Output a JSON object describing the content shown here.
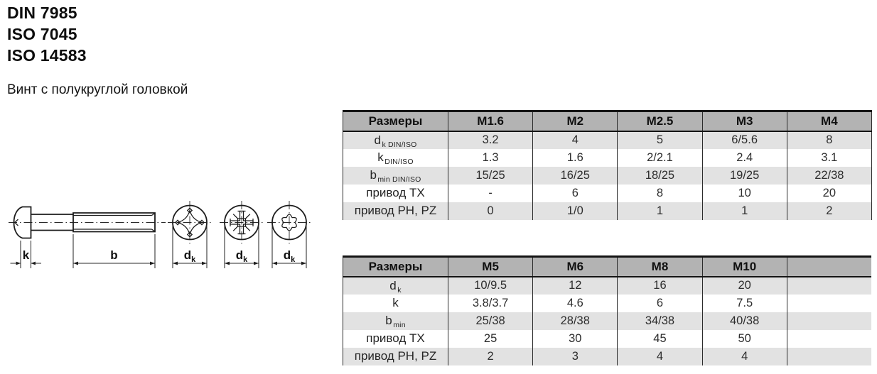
{
  "header": {
    "standards": [
      "DIN 7985",
      "ISO 7045",
      "ISO 14583"
    ],
    "subtitle": "Винт с полукруглой головкой"
  },
  "drawing": {
    "k_label": "k",
    "b_label": "b",
    "dk_label": "d",
    "dk_sub": "k",
    "views": [
      "side-view",
      "phillips-recess",
      "pozidriv-recess",
      "torx-recess"
    ]
  },
  "table1": {
    "header": [
      "Размеры",
      "M1.6",
      "M2",
      "M2.5",
      "M3",
      "M4"
    ],
    "rows": [
      {
        "label": {
          "base": "d",
          "sub": "k DIN/ISO"
        },
        "values": [
          "3.2",
          "4",
          "5",
          "6/5.6",
          "8"
        ]
      },
      {
        "label": {
          "base": "k",
          "sub": "DIN/ISO"
        },
        "values": [
          "1.3",
          "1.6",
          "2/2.1",
          "2.4",
          "3.1"
        ]
      },
      {
        "label": {
          "base": "b",
          "sub": "min DIN/ISO"
        },
        "values": [
          "15/25",
          "16/25",
          "18/25",
          "19/25",
          "22/38"
        ]
      },
      {
        "label": {
          "base": "привод TX",
          "sub": ""
        },
        "values": [
          "-",
          "6",
          "8",
          "10",
          "20"
        ]
      },
      {
        "label": {
          "base": "привод PH, PZ",
          "sub": ""
        },
        "values": [
          "0",
          "1/0",
          "1",
          "1",
          "2"
        ]
      }
    ]
  },
  "table2": {
    "header": [
      "Размеры",
      "M5",
      "M6",
      "M8",
      "M10",
      ""
    ],
    "rows": [
      {
        "label": {
          "base": "d",
          "sub": "k"
        },
        "values": [
          "10/9.5",
          "12",
          "16",
          "20",
          ""
        ]
      },
      {
        "label": {
          "base": "k",
          "sub": ""
        },
        "values": [
          "3.8/3.7",
          "4.6",
          "6",
          "7.5",
          ""
        ]
      },
      {
        "label": {
          "base": "b",
          "sub": "min"
        },
        "values": [
          "25/38",
          "28/38",
          "34/38",
          "40/38",
          ""
        ]
      },
      {
        "label": {
          "base": "привод TX",
          "sub": ""
        },
        "values": [
          "25",
          "30",
          "45",
          "50",
          ""
        ]
      },
      {
        "label": {
          "base": "привод PH, PZ",
          "sub": ""
        },
        "values": [
          "2",
          "3",
          "4",
          "4",
          ""
        ]
      }
    ]
  },
  "colors": {
    "table_header_bg": "#b3b3b3",
    "table_alt_row_bg": "#e2e2e2",
    "line_color": "#1c1c1c",
    "text_color": "#101010"
  }
}
